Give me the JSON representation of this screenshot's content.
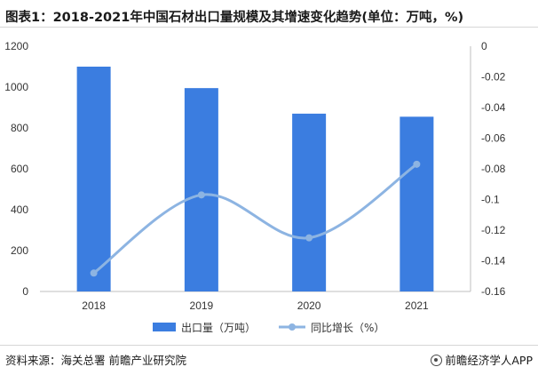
{
  "header": {
    "title": "图表1：2018-2021年中国石材出口量规模及其增速变化趋势(单位：万吨，%)"
  },
  "footer": {
    "source": "资料来源：海关总署 前瞻产业研究院",
    "brand": "前瞻经济学人APP"
  },
  "chart_data": {
    "type": "bar",
    "categories": [
      "2018",
      "2019",
      "2020",
      "2021"
    ],
    "series": [
      {
        "name": "出口量（万吨）",
        "type": "bar",
        "axis": "left",
        "values": [
          1100,
          995,
          870,
          855
        ]
      },
      {
        "name": "同比增长（%）",
        "type": "line",
        "axis": "right",
        "smooth": true,
        "values": [
          -0.148,
          -0.097,
          -0.125,
          -0.077
        ]
      }
    ],
    "ylim_left": [
      0,
      1200
    ],
    "yticks_left": [
      0,
      200,
      400,
      600,
      800,
      1000,
      1200
    ],
    "ylim_right": [
      -0.16,
      0
    ],
    "yticks_right": [
      "0",
      "-0.02",
      "-0.04",
      "-0.06",
      "-0.08",
      "-0.1",
      "-0.12",
      "-0.14",
      "-0.16"
    ],
    "colors": {
      "bar": "#3b7de0",
      "line": "#8db4e2",
      "axis": "#bfbfbf",
      "text": "#333333"
    },
    "legend_position": "bottom",
    "grid": false
  }
}
